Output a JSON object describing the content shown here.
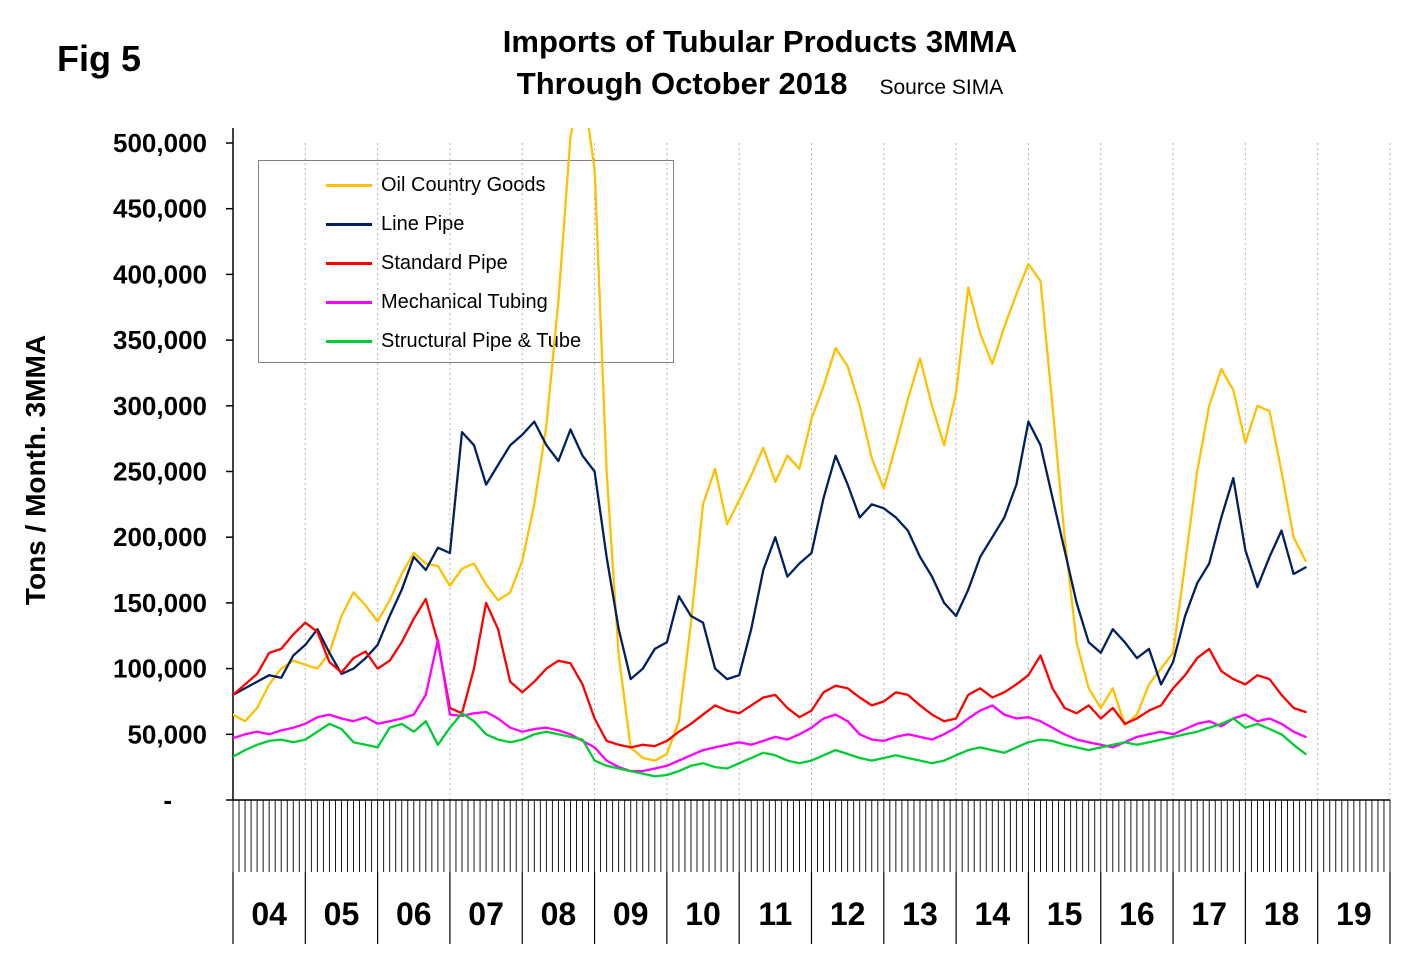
{
  "fig_label": "Fig 5",
  "title": {
    "line1": "Imports of Tubular Products 3MMA",
    "line2": "Through October 2018",
    "source": "Source SIMA"
  },
  "y_axis": {
    "label": "Tons / Month. 3MMA",
    "ticks": [
      "500,000",
      "450,000",
      "400,000",
      "350,000",
      "300,000",
      "250,000",
      "200,000",
      "150,000",
      "100,000",
      "50,000",
      "-"
    ]
  },
  "x_axis": {
    "years": [
      "04",
      "05",
      "06",
      "07",
      "08",
      "09",
      "10",
      "11",
      "12",
      "13",
      "14",
      "15",
      "16",
      "17",
      "18",
      "19"
    ]
  },
  "chart_data": {
    "type": "line",
    "title": "Imports of Tubular Products 3MMA Through October 2018",
    "source": "SIMA",
    "ylabel": "Tons / Month. 3MMA",
    "ylim": [
      0,
      500000
    ],
    "x_start_year": 2004,
    "x_step_months": 2,
    "x_end": "Oct 2018",
    "grid": "vertical dotted lines at year boundaries, monthly tick band below axis",
    "legend_position": "upper-left inside plot",
    "values_unit": "thousand tons per month",
    "series": [
      {
        "name": "Oil Country Goods",
        "color": "#FFC000",
        "values": [
          65,
          60,
          70,
          88,
          100,
          106,
          103,
          100,
          112,
          140,
          158,
          148,
          136,
          152,
          172,
          188,
          180,
          178,
          163,
          176,
          180,
          164,
          152,
          158,
          182,
          225,
          285,
          380,
          505,
          545,
          480,
          250,
          110,
          40,
          32,
          30,
          35,
          60,
          135,
          225,
          252,
          210,
          228,
          247,
          268,
          242,
          262,
          252,
          290,
          315,
          344,
          330,
          300,
          260,
          237,
          270,
          305,
          336,
          300,
          270,
          310,
          390,
          355,
          332,
          360,
          385,
          408,
          395,
          300,
          200,
          120,
          85,
          70,
          85,
          57,
          65,
          88,
          100,
          112,
          180,
          250,
          300,
          328,
          312,
          272,
          300,
          296,
          250,
          200,
          182
        ]
      },
      {
        "name": "Line Pipe",
        "color": "#002060",
        "values": [
          80,
          85,
          90,
          95,
          93,
          110,
          118,
          130,
          112,
          96,
          100,
          108,
          118,
          140,
          160,
          185,
          175,
          192,
          188,
          280,
          270,
          240,
          255,
          270,
          278,
          288,
          270,
          258,
          282,
          262,
          250,
          185,
          130,
          92,
          100,
          115,
          120,
          155,
          140,
          135,
          100,
          92,
          95,
          130,
          175,
          200,
          170,
          180,
          188,
          230,
          262,
          240,
          215,
          225,
          222,
          215,
          205,
          185,
          170,
          150,
          140,
          160,
          185,
          200,
          215,
          240,
          288,
          270,
          230,
          190,
          150,
          120,
          112,
          130,
          120,
          108,
          115,
          88,
          105,
          140,
          165,
          180,
          215,
          245,
          190,
          162,
          185,
          205,
          172,
          177
        ]
      },
      {
        "name": "Standard Pipe",
        "color": "#FF0000",
        "values": [
          80,
          88,
          96,
          112,
          115,
          126,
          135,
          128,
          105,
          97,
          108,
          113,
          100,
          106,
          120,
          138,
          153,
          120,
          70,
          66,
          100,
          150,
          130,
          90,
          82,
          90,
          100,
          106,
          104,
          88,
          62,
          45,
          42,
          40,
          42,
          41,
          45,
          52,
          58,
          65,
          72,
          68,
          66,
          72,
          78,
          80,
          70,
          63,
          68,
          82,
          87,
          85,
          78,
          72,
          75,
          82,
          80,
          72,
          65,
          60,
          62,
          80,
          85,
          78,
          82,
          88,
          95,
          110,
          85,
          70,
          66,
          72,
          62,
          70,
          58,
          62,
          68,
          72,
          85,
          95,
          108,
          115,
          98,
          92,
          88,
          95,
          92,
          80,
          70,
          67
        ]
      },
      {
        "name": "Mechanical Tubing",
        "color": "#FF00FF",
        "values": [
          47,
          50,
          52,
          50,
          53,
          55,
          58,
          63,
          65,
          62,
          60,
          63,
          58,
          60,
          62,
          65,
          80,
          122,
          65,
          64,
          66,
          67,
          62,
          55,
          52,
          54,
          55,
          53,
          50,
          45,
          40,
          30,
          25,
          22,
          22,
          24,
          26,
          30,
          34,
          38,
          40,
          42,
          44,
          42,
          45,
          48,
          46,
          50,
          55,
          62,
          65,
          60,
          50,
          46,
          45,
          48,
          50,
          48,
          46,
          50,
          55,
          62,
          68,
          72,
          65,
          62,
          63,
          60,
          55,
          50,
          46,
          44,
          42,
          40,
          44,
          48,
          50,
          52,
          50,
          54,
          58,
          60,
          56,
          62,
          65,
          60,
          62,
          58,
          52,
          48
        ]
      },
      {
        "name": "Structural Pipe & Tube",
        "color": "#00CC33",
        "values": [
          33,
          38,
          42,
          45,
          46,
          44,
          46,
          52,
          58,
          54,
          44,
          42,
          40,
          55,
          58,
          52,
          60,
          42,
          55,
          66,
          60,
          50,
          46,
          44,
          46,
          50,
          52,
          50,
          48,
          46,
          30,
          26,
          24,
          22,
          20,
          18,
          19,
          22,
          26,
          28,
          25,
          24,
          28,
          32,
          36,
          34,
          30,
          28,
          30,
          34,
          38,
          35,
          32,
          30,
          32,
          34,
          32,
          30,
          28,
          30,
          34,
          38,
          40,
          38,
          36,
          40,
          44,
          46,
          45,
          42,
          40,
          38,
          40,
          42,
          44,
          42,
          44,
          46,
          48,
          50,
          52,
          55,
          58,
          62,
          55,
          58,
          54,
          50,
          42,
          35
        ]
      }
    ]
  }
}
